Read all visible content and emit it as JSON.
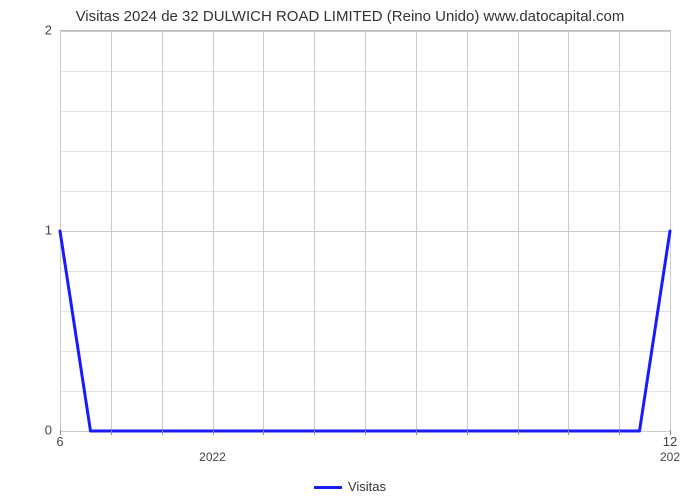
{
  "chart": {
    "type": "line",
    "title": "Visitas 2024 de 32 DULWICH ROAD LIMITED (Reino Unido) www.datocapital.com",
    "title_fontsize": 15,
    "background_color": "#ffffff",
    "grid_color": "#cccccc",
    "minor_grid_color": "#e2e2e2",
    "axis_color": "#888888",
    "text_color": "#444444",
    "line_color": "#1a1aff",
    "line_width": 3,
    "ylim": [
      0,
      2
    ],
    "ytick_major": [
      0,
      1,
      2
    ],
    "ytick_minor": [
      0.2,
      0.4,
      0.6,
      0.8,
      1.2,
      1.4,
      1.6,
      1.8
    ],
    "xlim": [
      0,
      12
    ],
    "xtick_positions": [
      0,
      1,
      2,
      3,
      4,
      5,
      6,
      7,
      8,
      9,
      10,
      11,
      12
    ],
    "xtick_labels_top": {
      "0": "6",
      "12": "12"
    },
    "xtick_labels_sub": {
      "3": "2022",
      "12": "202"
    },
    "series": {
      "label": "Visitas",
      "x": [
        0,
        0.6,
        11.4,
        12
      ],
      "y": [
        1,
        0,
        0,
        1
      ]
    },
    "legend_position": "bottom-center"
  }
}
